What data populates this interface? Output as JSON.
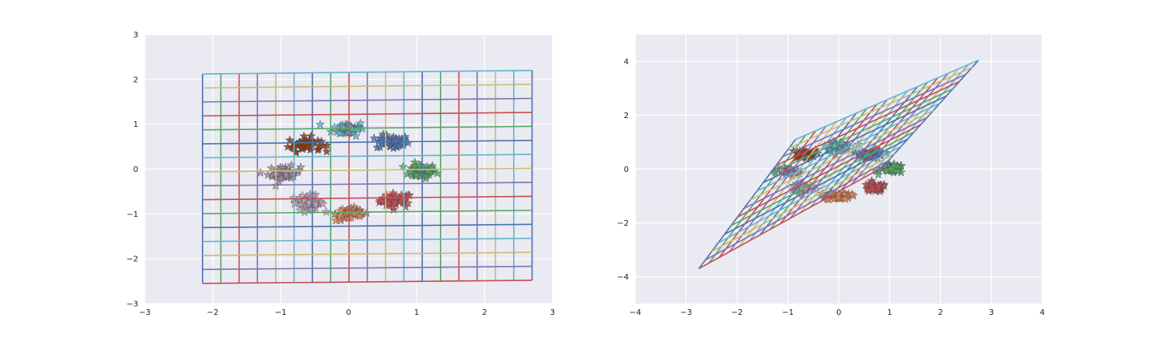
{
  "chart_data": [
    {
      "type": "scatter",
      "title": "",
      "xlabel": "",
      "ylabel": "",
      "xlim": [
        -3,
        3
      ],
      "ylim": [
        -3,
        3
      ],
      "xticks": [
        "−3",
        "−2",
        "−1",
        "0",
        "1",
        "2",
        "3"
      ],
      "yticks": [
        "−3",
        "−2",
        "−1",
        "0",
        "1",
        "2",
        "3"
      ],
      "grid": true,
      "background_color": "#eaeaf2",
      "marker": "star",
      "mesh": {
        "description_hidden": true,
        "corners": {
          "bottom_left": [
            -2.15,
            -2.55
          ],
          "bottom_right": [
            2.7,
            -2.48
          ],
          "top_right": [
            2.7,
            2.2
          ],
          "top_left": [
            -2.15,
            2.12
          ]
        },
        "cols": 18,
        "rows": 15
      },
      "series": [
        {
          "color": "#c44e52",
          "center": [
            0.7,
            -0.7
          ]
        },
        {
          "color": "#55a868",
          "center": [
            1.05,
            -0.05
          ]
        },
        {
          "color": "#4c72b0",
          "center": [
            0.65,
            0.6
          ]
        },
        {
          "color": "#64b5cd",
          "center": [
            0.0,
            0.9
          ]
        },
        {
          "color": "#8c3b16",
          "center": [
            -0.65,
            0.55
          ]
        },
        {
          "color": "#a08aa8",
          "center": [
            -0.95,
            -0.1
          ]
        },
        {
          "color": "#c4a4b8",
          "center": [
            -0.6,
            -0.75
          ]
        },
        {
          "color": "#dd8452",
          "center": [
            0.05,
            -1.0
          ]
        }
      ]
    },
    {
      "type": "scatter",
      "title": "",
      "xlabel": "",
      "ylabel": "",
      "xlim": [
        -4,
        4
      ],
      "ylim": [
        -5,
        5
      ],
      "xticks": [
        "−4",
        "−3",
        "−2",
        "−1",
        "0",
        "1",
        "2",
        "3",
        "4"
      ],
      "yticks": [
        "−4",
        "−2",
        "0",
        "2",
        "4"
      ],
      "yticks_values": [
        -4,
        -2,
        0,
        2,
        4
      ],
      "grid": true,
      "background_color": "#eaeaf2",
      "marker": "star",
      "mesh": {
        "corners": {
          "bottom_left": [
            -2.75,
            -3.7
          ],
          "bottom_right": [
            0.85,
            0.05
          ],
          "top_right": [
            2.75,
            4.05
          ],
          "top_left": [
            -0.85,
            1.1
          ]
        },
        "cols": 18,
        "rows": 15
      },
      "series": [
        {
          "color": "#c44e52",
          "center": [
            0.7,
            -0.7
          ]
        },
        {
          "color": "#55a868",
          "center": [
            1.05,
            0.0
          ]
        },
        {
          "color": "#4c72b0",
          "center": [
            0.65,
            0.55
          ]
        },
        {
          "color": "#64b5cd",
          "center": [
            0.0,
            0.85
          ]
        },
        {
          "color": "#8c3b16",
          "center": [
            -0.7,
            0.55
          ]
        },
        {
          "color": "#a08aa8",
          "center": [
            -1.0,
            -0.1
          ]
        },
        {
          "color": "#c4a4b8",
          "center": [
            -0.7,
            -0.7
          ]
        },
        {
          "color": "#dd8452",
          "center": [
            0.0,
            -1.0
          ]
        }
      ]
    }
  ],
  "palette": [
    "#4c72b0",
    "#55a868",
    "#c44e52",
    "#8172b2",
    "#ccb974",
    "#64b5cd"
  ]
}
